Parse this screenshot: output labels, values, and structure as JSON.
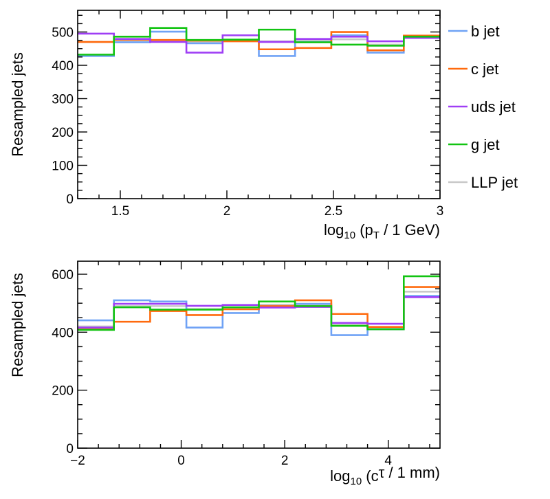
{
  "legend": [
    {
      "label": "b jet",
      "color": "#6fa2f5"
    },
    {
      "label": "c jet",
      "color": "#ff6a0d"
    },
    {
      "label": "uds jet",
      "color": "#9f3ef5"
    },
    {
      "label": "g jet",
      "color": "#12c412"
    },
    {
      "label": "LLP jet",
      "color": "#c8c8c8"
    }
  ],
  "chart_data": [
    {
      "type": "histogram-step",
      "ylabel": "Resampled jets",
      "xlabel": {
        "pre": "log",
        "sub1": "10",
        "mid": " (p",
        "sub2": "T",
        "post": " / 1 GeV)"
      },
      "xlim": [
        1.3,
        3.0
      ],
      "ylim": [
        0,
        565
      ],
      "xticks": [
        1.5,
        2,
        2.5,
        3
      ],
      "xtick_labels": [
        "1.5",
        "2",
        "2.5",
        "3"
      ],
      "yticks": [
        0,
        100,
        200,
        300,
        400,
        500
      ],
      "ytick_labels": [
        "0",
        "100",
        "200",
        "300",
        "400",
        "500"
      ],
      "bin_edges": [
        1.3,
        1.47,
        1.64,
        1.81,
        1.98,
        2.15,
        2.32,
        2.49,
        2.66,
        2.83,
        3.0
      ],
      "series": [
        {
          "name": "LLP jet",
          "values": [
            470,
            472,
            474,
            470,
            476,
            472,
            474,
            478,
            462,
            484
          ]
        },
        {
          "name": "b jet",
          "values": [
            428,
            469,
            501,
            466,
            475,
            428,
            470,
            490,
            438,
            486
          ]
        },
        {
          "name": "c jet",
          "values": [
            470,
            477,
            476,
            474,
            472,
            448,
            452,
            500,
            445,
            489
          ]
        },
        {
          "name": "uds jet",
          "values": [
            495,
            479,
            470,
            438,
            490,
            470,
            479,
            486,
            472,
            482
          ]
        },
        {
          "name": "g jet",
          "values": [
            432,
            486,
            512,
            476,
            477,
            507,
            469,
            462,
            459,
            486
          ]
        }
      ]
    },
    {
      "type": "histogram-step",
      "ylabel": "Resampled jets",
      "xlabel": {
        "pre": "log",
        "sub1": "10",
        "mid": " (c",
        "sub2": "",
        "post": "τ / 1 mm)"
      },
      "xlim": [
        -2,
        5
      ],
      "ylim": [
        0,
        645
      ],
      "xticks": [
        -2,
        0,
        2,
        4
      ],
      "xtick_labels": [
        "−2",
        "0",
        "2",
        "4"
      ],
      "yticks": [
        0,
        200,
        400,
        600
      ],
      "ytick_labels": [
        "0",
        "200",
        "400",
        "600"
      ],
      "bin_edges": [
        -2,
        -1.3,
        -0.6,
        0.1,
        0.8,
        1.5,
        2.2,
        2.9,
        3.6,
        4.3,
        5.0
      ],
      "series": [
        {
          "name": "LLP jet",
          "values": [
            420,
            490,
            490,
            480,
            480,
            495,
            495,
            425,
            415,
            540
          ]
        },
        {
          "name": "b jet",
          "values": [
            441,
            510,
            506,
            416,
            466,
            490,
            498,
            390,
            410,
            525
          ]
        },
        {
          "name": "c jet",
          "values": [
            410,
            436,
            473,
            459,
            479,
            490,
            510,
            463,
            418,
            556
          ]
        },
        {
          "name": "uds jet",
          "values": [
            416,
            498,
            498,
            491,
            494,
            485,
            487,
            432,
            429,
            521
          ]
        },
        {
          "name": "g jet",
          "values": [
            408,
            486,
            478,
            478,
            486,
            506,
            490,
            422,
            410,
            593
          ]
        }
      ]
    }
  ]
}
